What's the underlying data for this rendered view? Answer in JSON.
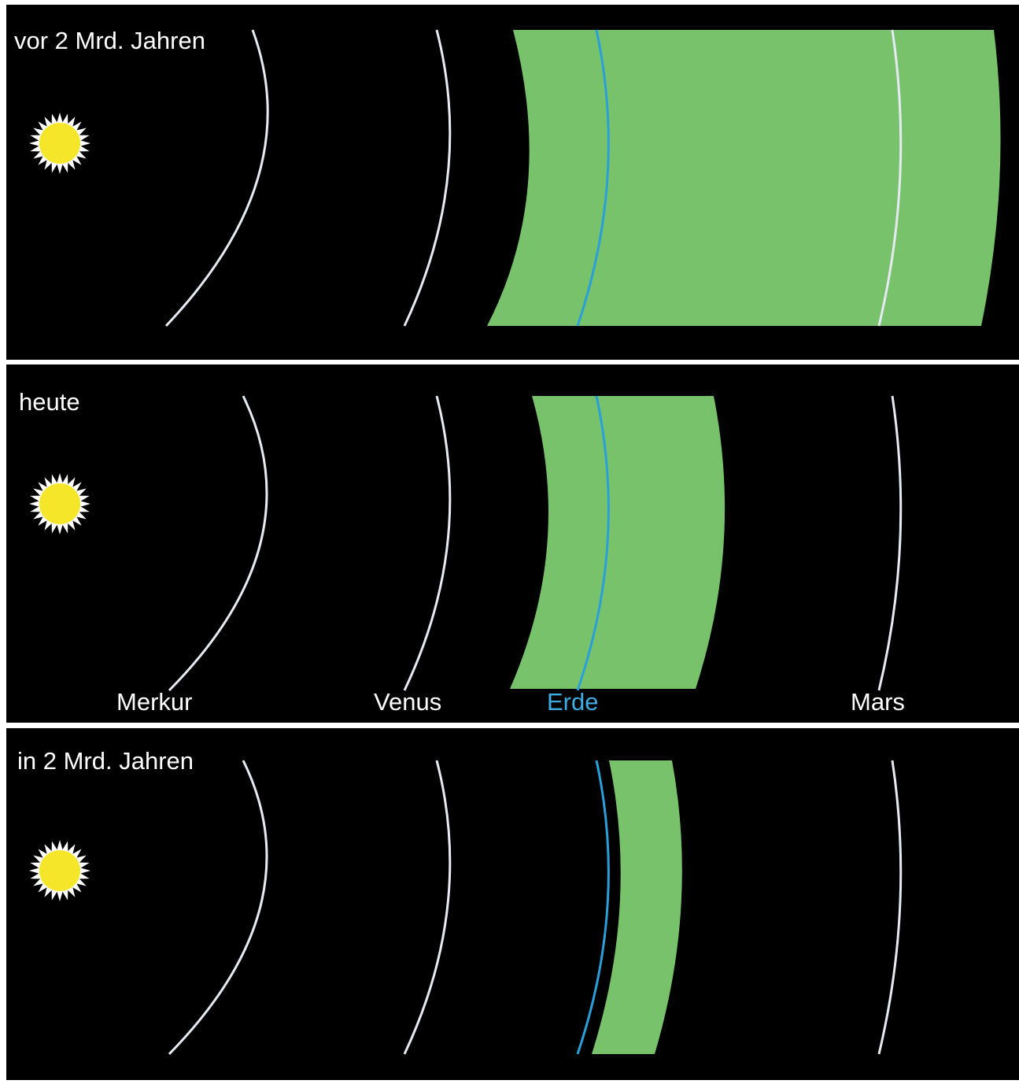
{
  "colors": {
    "background": "#000000",
    "divider": "#ffffff",
    "orbit": "#e6eaf2",
    "earth_orbit": "#2a9fd8",
    "habitable_zone": "#78c26c",
    "sun_fill": "#f6e62a",
    "sun_rays": "#ffffff",
    "label_text": "#ffffff",
    "earth_label_text": "#3eaee2"
  },
  "panels": [
    {
      "title": "vor 2 Mrd. Jahren",
      "habitable_zone": {
        "inner": "earth-minus",
        "outer": "beyond-mars"
      },
      "earth_orbit_offset": "inside-zone"
    },
    {
      "title": "heute",
      "habitable_zone": {
        "inner": "inside-earth",
        "outer": "between-earth-and-mars"
      },
      "earth_orbit_offset": "inside-zone"
    },
    {
      "title": "in 2 Mrd. Jahren",
      "habitable_zone": {
        "inner": "just-outside-earth",
        "outer": "narrow"
      },
      "earth_orbit_offset": "inside-edge"
    }
  ],
  "planet_labels": {
    "mercury": "Merkur",
    "venus": "Venus",
    "earth": "Erde",
    "mars": "Mars"
  },
  "icons": {
    "sun": "sun-icon"
  }
}
